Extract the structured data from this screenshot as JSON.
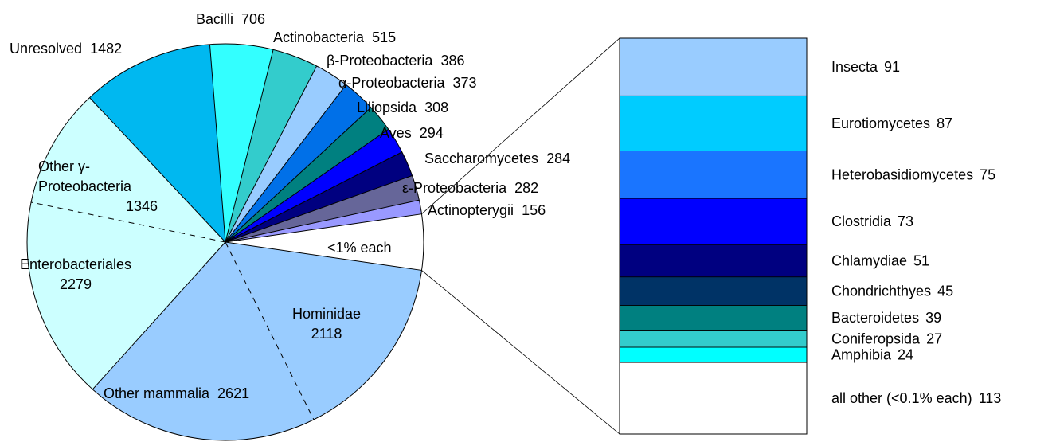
{
  "chart_data": [
    {
      "type": "pie",
      "categories": [
        "Bacilli",
        "Actinobacteria",
        "β-Proteobacteria",
        "α-Proteobacteria",
        "Liliopsida",
        "Aves",
        "Saccharomycetes",
        "ε-Proteobacteria",
        "Actinopterygii",
        "<1% each",
        "Hominidae",
        "Other mammalia",
        "Enterobacteriales",
        "Other γ-Proteobacteria",
        "Unresolved"
      ],
      "values": [
        706,
        515,
        386,
        373,
        308,
        294,
        284,
        282,
        156,
        625,
        2118,
        2621,
        2279,
        1346,
        1482
      ],
      "value_labels": [
        "706",
        "515",
        "386",
        "373",
        "308",
        "294",
        "284",
        "282",
        "156",
        null,
        "2118",
        "2621",
        "2279",
        "1346",
        "1482"
      ],
      "colors": [
        "#33ffff",
        "#33cccc",
        "#99ccff",
        "#0070e8",
        "#008080",
        "#0000ff",
        "#000080",
        "#666699",
        "#9999ff",
        "#ffffff",
        "#99ccff",
        "#99ccff",
        "#ccffff",
        "#ccffff",
        "#00b8f0"
      ]
    },
    {
      "type": "bar",
      "stacked": true,
      "categories": [
        "Insecta",
        "Eurotiomycetes",
        "Heterobasidiomycetes",
        "Clostridia",
        "Chlamydiae",
        "Chondrichthyes",
        "Bacteroidetes",
        "Coniferopsida",
        "Amphibia",
        "all other (<0.1% each)"
      ],
      "values": [
        91,
        87,
        75,
        73,
        51,
        45,
        39,
        27,
        24,
        113
      ],
      "colors": [
        "#99ccff",
        "#00ccff",
        "#1a75ff",
        "#0000ff",
        "#000080",
        "#003366",
        "#008080",
        "#33cccc",
        "#00ffff",
        "#ffffff"
      ]
    }
  ]
}
